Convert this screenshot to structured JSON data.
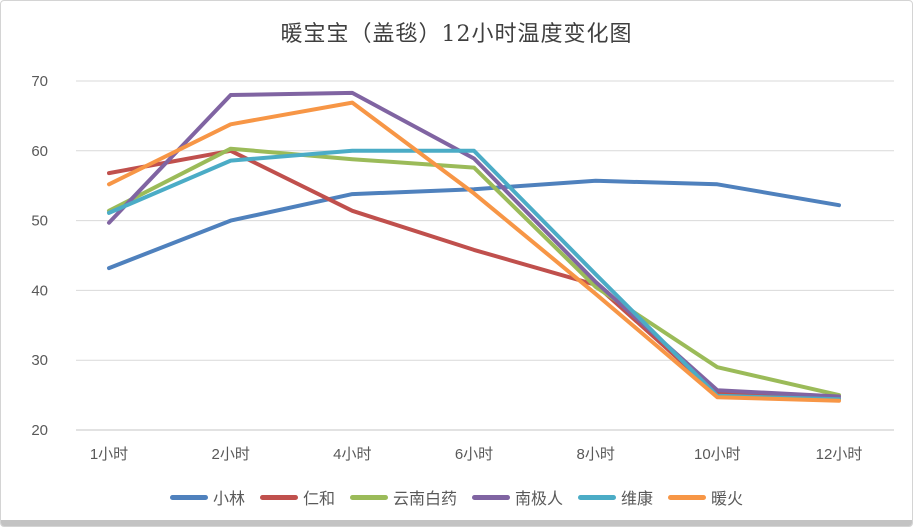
{
  "window": {
    "background": "#ffffff",
    "border_color": "#d4d4d4",
    "bottom_edge_color": "#c3c3c3"
  },
  "chart_data": {
    "type": "line",
    "title": "暖宝宝（盖毯）12小时温度变化图",
    "categories": [
      "1小时",
      "2小时",
      "4小时",
      "6小时",
      "8小时",
      "10小时",
      "12小时"
    ],
    "series": [
      {
        "name": "小林",
        "color": "#4F81BD",
        "values": [
          43.2,
          50.0,
          53.8,
          54.5,
          55.7,
          55.2,
          52.2
        ]
      },
      {
        "name": "仁和",
        "color": "#C0504D",
        "values": [
          56.8,
          60.0,
          51.4,
          45.8,
          40.8,
          25.2,
          24.5
        ]
      },
      {
        "name": "云南白药",
        "color": "#9BBB59",
        "values": [
          51.4,
          60.3,
          58.8,
          57.6,
          40.5,
          29.0,
          25.0
        ]
      },
      {
        "name": "南极人",
        "color": "#8064A2",
        "values": [
          49.7,
          68.0,
          68.3,
          58.9,
          41.2,
          25.7,
          24.8
        ]
      },
      {
        "name": "维康",
        "color": "#4BACC6",
        "values": [
          51.1,
          58.6,
          60.0,
          60.0,
          42.3,
          24.9,
          24.4
        ]
      },
      {
        "name": "暖火",
        "color": "#F79646",
        "values": [
          55.2,
          63.8,
          66.9,
          53.9,
          39.5,
          24.7,
          24.2
        ]
      }
    ],
    "ylim": [
      20,
      70
    ],
    "yticks": [
      20,
      30,
      40,
      50,
      60,
      70
    ],
    "xlabel": "",
    "ylabel": "",
    "grid": true,
    "gridline_color": "#d9d9d9",
    "axis_line_color": "#c6c6c6",
    "tick_label_color": "#595959",
    "legend_position": "bottom"
  }
}
